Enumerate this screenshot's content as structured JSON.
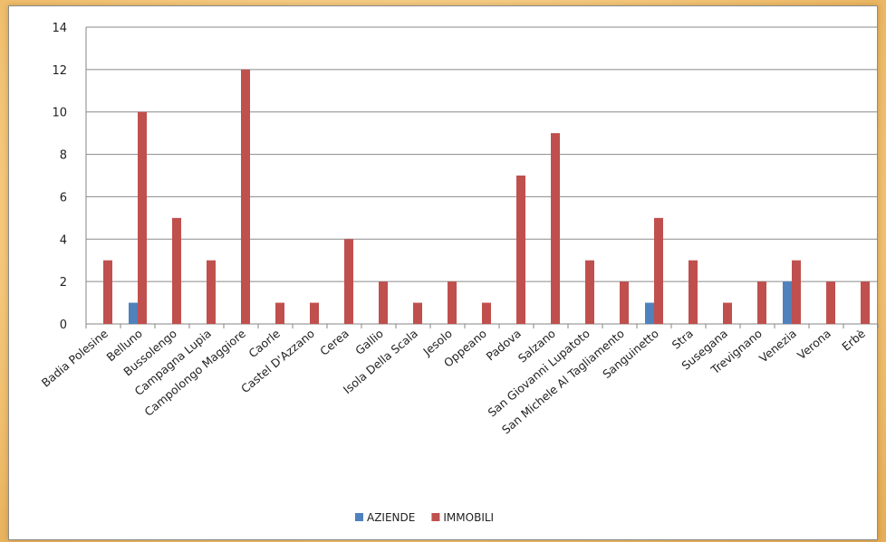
{
  "chart_data": {
    "type": "bar",
    "title": "",
    "xlabel": "",
    "ylabel": "",
    "ylim": [
      0,
      14
    ],
    "yticks": [
      0,
      2,
      4,
      6,
      8,
      10,
      12,
      14
    ],
    "grid": true,
    "legend_position": "bottom",
    "categories": [
      "Badia Polesine",
      "Belluno",
      "Bussolengo",
      "Campagna Lupia",
      "Campolongo Maggiore",
      "Caorle",
      "Castel D'Azzano",
      "Cerea",
      "Gallio",
      "Isola Della Scala",
      "Jesolo",
      "Oppeano",
      "Padova",
      "Salzano",
      "San Giovanni Lupatoto",
      "San Michele Al Tagliamento",
      "Sanguinetto",
      "Stra",
      "Susegana",
      "Trevignano",
      "Venezia",
      "Verona",
      "Erbè"
    ],
    "series": [
      {
        "name": "AZIENDE",
        "color": "#4f81bd",
        "values": [
          0,
          1,
          0,
          0,
          0,
          0,
          0,
          0,
          0,
          0,
          0,
          0,
          0,
          0,
          0,
          0,
          1,
          0,
          0,
          0,
          2,
          0,
          0
        ]
      },
      {
        "name": "IMMOBILI",
        "color": "#c0504d",
        "values": [
          3,
          10,
          5,
          3,
          12,
          1,
          1,
          4,
          2,
          1,
          2,
          1,
          7,
          9,
          3,
          2,
          5,
          3,
          1,
          2,
          3,
          2,
          2
        ]
      }
    ]
  }
}
